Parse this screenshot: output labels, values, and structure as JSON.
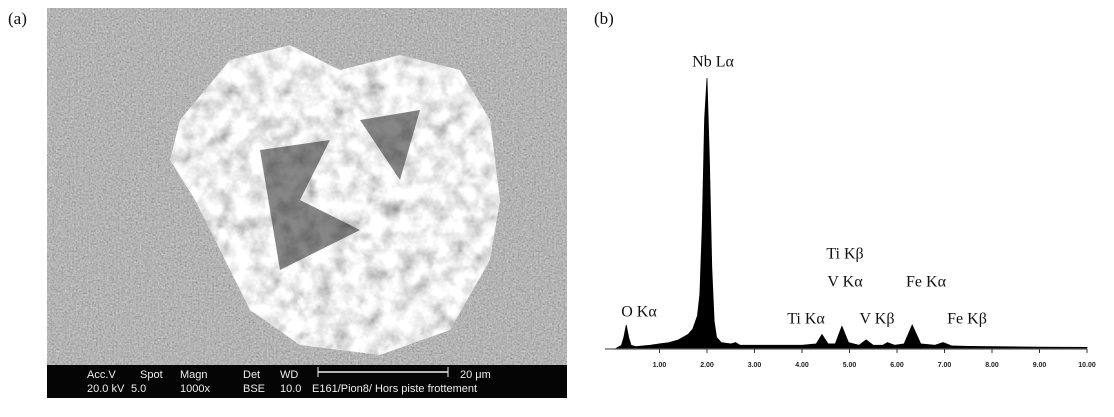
{
  "panel_a": {
    "label": "(a)",
    "info_bar": {
      "header": [
        "Acc.V",
        "Spot",
        "Magn",
        "Det",
        "WD"
      ],
      "values": [
        "20.0 kV",
        "5.0",
        "1000x",
        "BSE",
        "10.0"
      ],
      "scale": "20 μm",
      "sample": "E161/Pion8/ Hors piste  frottement"
    }
  },
  "chart_data": {
    "type": "area",
    "label": "(b)",
    "color": "#000000",
    "x": [
      0.1,
      0.2,
      0.25,
      0.3,
      0.35,
      0.4,
      0.5,
      0.8,
      1.0,
      1.2,
      1.4,
      1.6,
      1.7,
      1.8,
      1.85,
      1.9,
      1.95,
      2.0,
      2.05,
      2.1,
      2.15,
      2.2,
      2.3,
      2.5,
      2.6,
      2.7,
      3.0,
      3.5,
      4.0,
      4.3,
      4.42,
      4.55,
      4.7,
      4.84,
      4.98,
      5.2,
      5.35,
      5.5,
      5.7,
      5.8,
      5.95,
      6.15,
      6.32,
      6.5,
      6.8,
      6.97,
      7.15,
      7.5,
      8,
      9,
      10
    ],
    "values": [
      0,
      1,
      4,
      8.5,
      4,
      1,
      0.5,
      1,
      1.5,
      2,
      3,
      5,
      7,
      12,
      20,
      45,
      85,
      100,
      70,
      30,
      10,
      4,
      2,
      1.5,
      2,
      1,
      1,
      1,
      1,
      1.5,
      5,
      1.5,
      1.5,
      8,
      2,
      1,
      3,
      1,
      1,
      2,
      1,
      1.5,
      8.5,
      1.5,
      1,
      2,
      0.8,
      0.6,
      0.5,
      0.3,
      0.2
    ],
    "xlim": [
      0,
      10
    ],
    "ylim": [
      0,
      100
    ],
    "xticks": [
      {
        "value": 1,
        "label": "1.00"
      },
      {
        "value": 2,
        "label": "2.00"
      },
      {
        "value": 3,
        "label": "3.00"
      },
      {
        "value": 4,
        "label": "4.00"
      },
      {
        "value": 5,
        "label": "5.00"
      },
      {
        "value": 6,
        "label": "6.00"
      },
      {
        "value": 7,
        "label": "7.00"
      },
      {
        "value": 8,
        "label": "8.00"
      },
      {
        "value": 9,
        "label": "9.00"
      },
      {
        "value": 10,
        "label": "10.00"
      }
    ],
    "annotations": [
      "Nb Lα",
      "O Kα",
      "Ti Kβ",
      "V Kα",
      "Ti Kα",
      "V Kβ",
      "Fe Kα",
      "Fe Kβ"
    ]
  }
}
